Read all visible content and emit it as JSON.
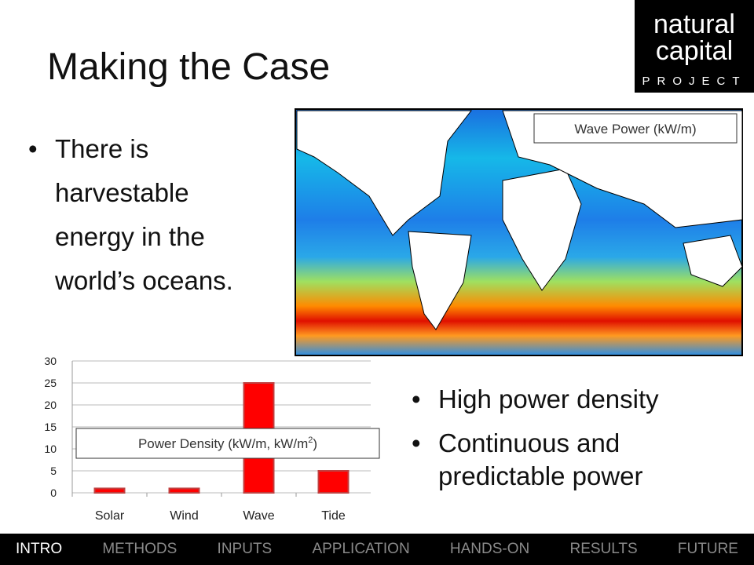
{
  "header": {
    "title": "Making the Case"
  },
  "logo": {
    "line1": "natural",
    "line2": "capital",
    "line3": "PROJECT"
  },
  "bullets": [
    "There is harvestable energy in the world’s oceans."
  ],
  "map": {
    "label": "Wave Power (kW/m)"
  },
  "chart_data": {
    "type": "bar",
    "annotation": {
      "text": "Power Density (kW/m,  kW/m",
      "superscript": "2",
      "close": ")"
    },
    "categories": [
      "Solar",
      "Wind",
      "Wave",
      "Tide"
    ],
    "values": [
      1,
      1,
      25,
      5
    ],
    "color": "#ff0000",
    "ylim": [
      0,
      30
    ],
    "yticks": [
      0,
      5,
      10,
      15,
      20,
      25,
      30
    ],
    "grid": true
  },
  "bullets2": [
    "High power density",
    "Continuous and predictable  power"
  ],
  "nav": {
    "items": [
      "INTRO",
      "METHODS",
      "INPUTS",
      "APPLICATION",
      "HANDS-ON",
      "RESULTS",
      "FUTURE"
    ],
    "active": 0
  }
}
